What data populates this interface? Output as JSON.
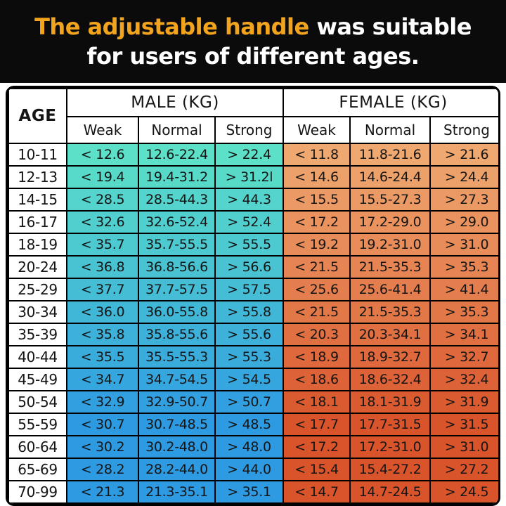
{
  "banner": {
    "highlight": "The adjustable handle",
    "rest_line1": " was suitable",
    "line2": "for users of different ages.",
    "highlight_color": "#F2A41E",
    "text_color": "#FFFFFF",
    "bg_color": "#0B0B0B"
  },
  "table": {
    "age_header": "AGE",
    "male_header": "MALE (KG)",
    "female_header": "FEMALE (KG)",
    "subheaders": [
      "Weak",
      "Normal",
      "Strong"
    ],
    "colors": {
      "male_top": "#5CE0C7",
      "male_bottom": "#2E9AE2",
      "female_top": "#EFA870",
      "female_bottom": "#D9542B",
      "border": "#000000",
      "header_bg": "#FFFFFF",
      "cell_text": "#151515"
    }
  },
  "chart_data": {
    "type": "table",
    "title": "The adjustable handle was suitable for users of different ages.",
    "columns": [
      "AGE",
      "MALE Weak (KG)",
      "MALE Normal (KG)",
      "MALE Strong (KG)",
      "FEMALE Weak (KG)",
      "FEMALE Normal (KG)",
      "FEMALE Strong (KG)"
    ],
    "rows": [
      {
        "age": "10-11",
        "male": [
          "< 12.6",
          "12.6-22.4",
          "> 22.4"
        ],
        "female": [
          "< 11.8",
          "11.8-21.6",
          "> 21.6"
        ]
      },
      {
        "age": "12-13",
        "male": [
          "< 19.4",
          "19.4-31.2",
          "> 31.2l"
        ],
        "female": [
          "< 14.6",
          "14.6-24.4",
          "> 24.4"
        ]
      },
      {
        "age": "14-15",
        "male": [
          "< 28.5",
          "28.5-44.3",
          "> 44.3"
        ],
        "female": [
          "< 15.5",
          "15.5-27.3",
          "> 27.3"
        ]
      },
      {
        "age": "16-17",
        "male": [
          "< 32.6",
          "32.6-52.4",
          "> 52.4"
        ],
        "female": [
          "< 17.2",
          "17.2-29.0",
          "> 29.0"
        ]
      },
      {
        "age": "18-19",
        "male": [
          "< 35.7",
          "35.7-55.5",
          "> 55.5"
        ],
        "female": [
          "< 19.2",
          "19.2-31.0",
          "> 31.0"
        ]
      },
      {
        "age": "20-24",
        "male": [
          "< 36.8",
          "36.8-56.6",
          "> 56.6"
        ],
        "female": [
          "< 21.5",
          "21.5-35.3",
          "> 35.3"
        ]
      },
      {
        "age": "25-29",
        "male": [
          "< 37.7",
          "37.7-57.5",
          "> 57.5"
        ],
        "female": [
          "< 25.6",
          "25.6-41.4",
          "> 41.4"
        ]
      },
      {
        "age": "30-34",
        "male": [
          "< 36.0",
          "36.0-55.8",
          "> 55.8"
        ],
        "female": [
          "< 21.5",
          "21.5-35.3",
          "> 35.3"
        ]
      },
      {
        "age": "35-39",
        "male": [
          "< 35.8",
          "35.8-55.6",
          "> 55.6"
        ],
        "female": [
          "< 20.3",
          "20.3-34.1",
          "> 34.1"
        ]
      },
      {
        "age": "40-44",
        "male": [
          "< 35.5",
          "35.5-55.3",
          "> 55.3"
        ],
        "female": [
          "< 18.9",
          "18.9-32.7",
          "> 32.7"
        ]
      },
      {
        "age": "45-49",
        "male": [
          "< 34.7",
          "34.7-54.5",
          "> 54.5"
        ],
        "female": [
          "< 18.6",
          "18.6-32.4",
          "> 32.4"
        ]
      },
      {
        "age": "50-54",
        "male": [
          "< 32.9",
          "32.9-50.7",
          "> 50.7"
        ],
        "female": [
          "< 18.1",
          "18.1-31.9",
          "> 31.9"
        ]
      },
      {
        "age": "55-59",
        "male": [
          "< 30.7",
          "30.7-48.5",
          "> 48.5"
        ],
        "female": [
          "< 17.7",
          "17.7-31.5",
          "> 31.5"
        ]
      },
      {
        "age": "60-64",
        "male": [
          "< 30.2",
          "30.2-48.0",
          "> 48.0"
        ],
        "female": [
          "< 17.2",
          "17.2-31.0",
          "> 31.0"
        ]
      },
      {
        "age": "65-69",
        "male": [
          "< 28.2",
          "28.2-44.0",
          "> 44.0"
        ],
        "female": [
          "< 15.4",
          "15.4-27.2",
          "> 27.2"
        ]
      },
      {
        "age": "70-99",
        "male": [
          "< 21.3",
          "21.3-35.1",
          "> 35.1"
        ],
        "female": [
          "< 14.7",
          "14.7-24.5",
          "> 24.5"
        ]
      }
    ]
  }
}
